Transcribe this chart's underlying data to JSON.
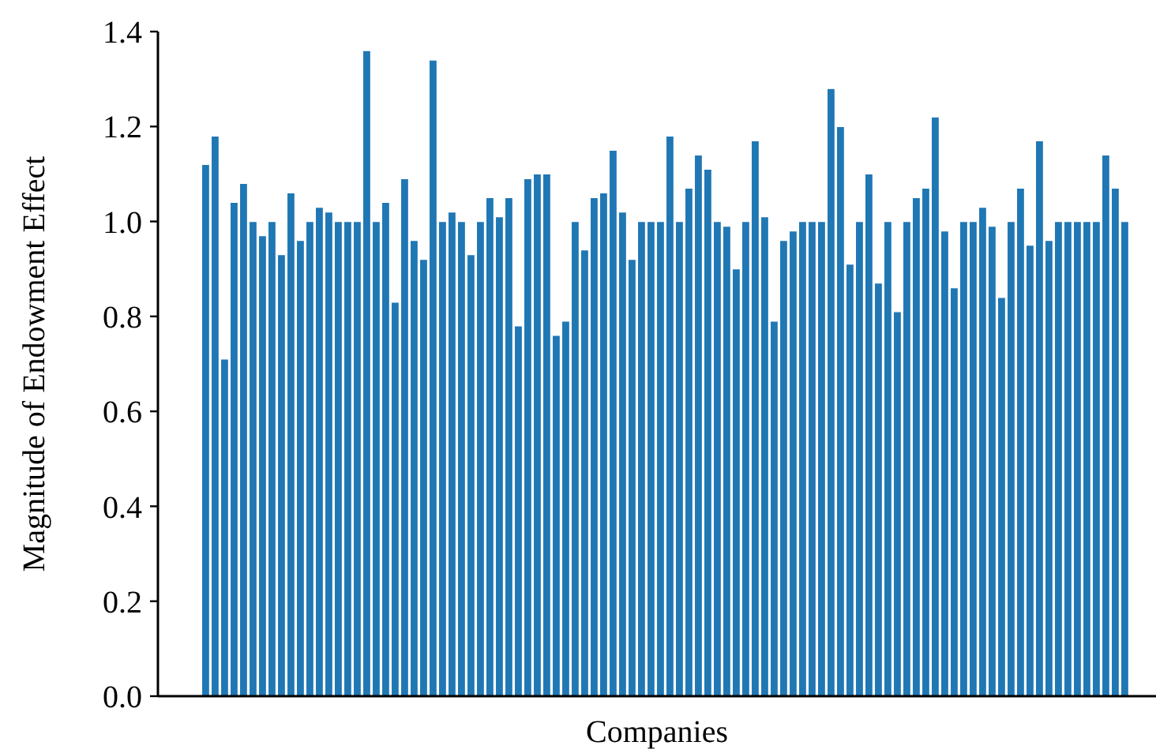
{
  "chart_data": {
    "type": "bar",
    "xlabel": "Companies",
    "ylabel": "Magnitude of Endowment Effect",
    "categories": [
      null,
      null,
      null,
      null,
      null,
      null,
      null,
      null,
      null,
      null,
      null,
      null,
      null,
      null,
      null,
      null,
      null,
      null,
      null,
      null,
      null,
      null,
      null,
      null,
      null,
      null,
      null,
      null,
      null,
      null,
      null,
      null,
      null,
      null,
      null,
      null,
      null,
      null,
      null,
      null,
      null,
      null,
      null,
      null,
      null,
      null,
      null,
      null,
      null,
      null,
      null,
      null,
      null,
      null,
      null,
      null,
      null,
      null,
      null,
      null,
      null,
      null,
      null,
      null,
      null,
      null,
      null,
      null,
      null,
      null,
      null,
      null,
      null,
      null,
      null,
      null,
      null,
      null,
      null,
      null,
      null,
      null,
      null,
      null,
      null,
      null,
      null,
      null,
      null,
      null,
      null,
      null,
      null,
      null,
      null,
      null,
      null,
      null
    ],
    "values": [
      1.12,
      1.18,
      0.71,
      1.04,
      1.08,
      1.0,
      0.97,
      1.0,
      0.93,
      1.06,
      0.96,
      1.0,
      1.03,
      1.02,
      1.0,
      1.0,
      1.0,
      1.36,
      1.0,
      1.04,
      0.83,
      1.09,
      0.96,
      0.92,
      1.34,
      1.0,
      1.02,
      1.0,
      0.93,
      1.0,
      1.05,
      1.01,
      1.05,
      0.78,
      1.09,
      1.1,
      1.1,
      0.76,
      0.79,
      1.0,
      0.94,
      1.05,
      1.06,
      1.15,
      1.02,
      0.92,
      1.0,
      1.0,
      1.0,
      1.18,
      1.0,
      1.07,
      1.14,
      1.11,
      1.0,
      0.99,
      0.9,
      1.0,
      1.17,
      1.01,
      0.79,
      0.96,
      0.98,
      1.0,
      1.0,
      1.0,
      1.28,
      1.2,
      0.91,
      1.0,
      1.1,
      0.87,
      1.0,
      0.81,
      1.0,
      1.05,
      1.07,
      1.22,
      0.98,
      0.86,
      1.0,
      1.0,
      1.03,
      0.99,
      0.84,
      1.0,
      1.07,
      0.95,
      1.17,
      0.96,
      1.0,
      1.0,
      1.0,
      1.0,
      1.0,
      1.14,
      1.07,
      1.0
    ],
    "color": "#1f77b4",
    "ylim": [
      0,
      1.4
    ],
    "yticks": [
      {
        "value": 0,
        "label": "0.0"
      },
      {
        "value": 0.2,
        "label": "0.2"
      },
      {
        "value": 0.4,
        "label": "0.4"
      },
      {
        "value": 0.6,
        "label": "0.6"
      },
      {
        "value": 0.8,
        "label": "0.8"
      },
      {
        "value": 1,
        "label": "1.0"
      },
      {
        "value": 1.2,
        "label": "1.2"
      },
      {
        "value": 1.4,
        "label": "1.4"
      }
    ]
  }
}
